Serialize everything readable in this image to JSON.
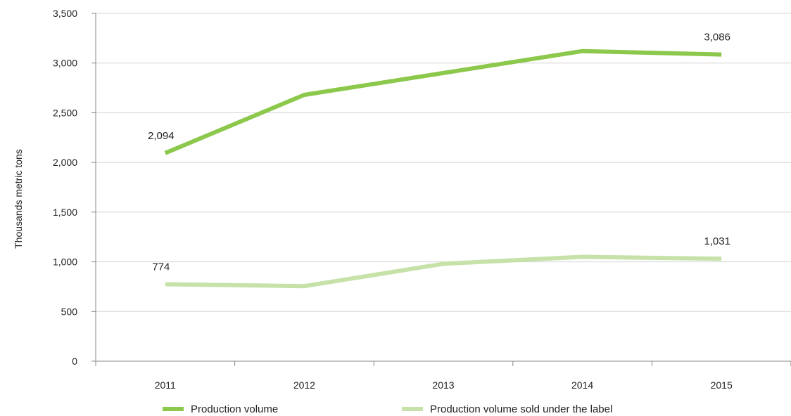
{
  "chart_data": {
    "type": "line",
    "categories": [
      "2011",
      "2012",
      "2013",
      "2014",
      "2015"
    ],
    "series": [
      {
        "name": "Production volume",
        "color": "#8cc84b",
        "values": [
          2094,
          2680,
          2900,
          3120,
          3086
        ],
        "labels": [
          {
            "index": 0,
            "text": "2,094"
          },
          {
            "index": 4,
            "text": "3,086"
          }
        ]
      },
      {
        "name": "Production volume sold under the label",
        "color": "#c6e2a8",
        "values": [
          774,
          755,
          980,
          1050,
          1031
        ],
        "labels": [
          {
            "index": 0,
            "text": "774"
          },
          {
            "index": 4,
            "text": "1,031"
          }
        ]
      }
    ],
    "title": "",
    "xlabel": "",
    "ylabel": "Thousands metric tons",
    "ylim": [
      0,
      3500
    ],
    "yticks": [
      {
        "value": 0,
        "label": "0"
      },
      {
        "value": 500,
        "label": "500"
      },
      {
        "value": 1000,
        "label": "1,000"
      },
      {
        "value": 1500,
        "label": "1,500"
      },
      {
        "value": 2000,
        "label": "2,000"
      },
      {
        "value": 2500,
        "label": "2,500"
      },
      {
        "value": 3000,
        "label": "3,000"
      },
      {
        "value": 3500,
        "label": "3,500"
      }
    ],
    "grid": true,
    "legend_position": "bottom",
    "gridline_color": "#d4d4d4",
    "axis_color": "#888888"
  }
}
